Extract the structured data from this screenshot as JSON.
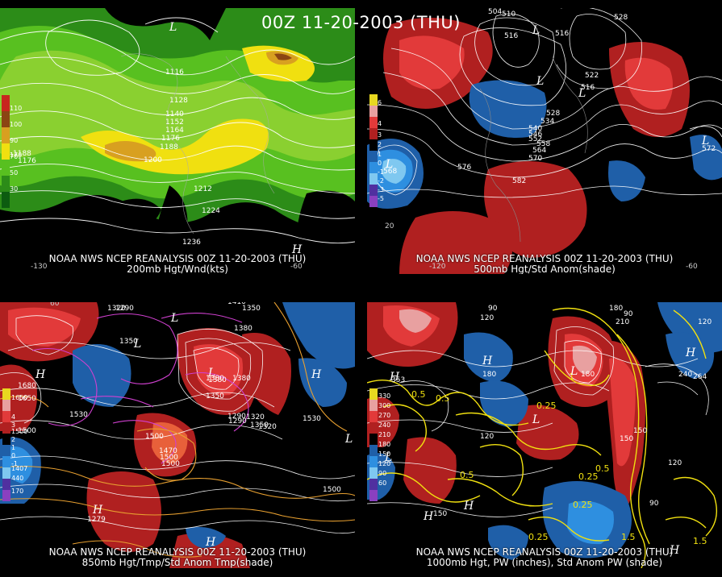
{
  "title": "00Z 11-20-2003 (THU)",
  "panels": [
    {
      "id": "p1",
      "caption_line1": "NOAA NWS NCEP REANALYSIS 00Z 11-20-2003 (THU)",
      "caption_line2": "200mb Hgt/Wnd(kts)",
      "legend_values": [
        "110",
        "100",
        "90",
        "70",
        "50",
        "30",
        "170"
      ],
      "legend_colors": [
        "#c8261e",
        "#8b4513",
        "#d8a020",
        "#f0e010",
        "#58c020",
        "#2c8c18",
        "#0c5c10"
      ],
      "contour_labels": [
        "1116",
        "1128",
        "1140",
        "1152",
        "1164",
        "1176",
        "1188",
        "1200",
        "1212",
        "1224",
        "1236",
        "1188",
        "1176"
      ],
      "highs_lows": [
        "L",
        "H"
      ],
      "lon_labels": [
        "-130",
        "-60"
      ]
    },
    {
      "id": "p2",
      "caption_line1": "NOAA NWS NCEP REANALYSIS 00Z 11-20-2003 (THU)",
      "caption_line2": "500mb Hgt/Std Anom(shade)",
      "legend_values": [
        "6",
        "4",
        "3",
        "2",
        "1",
        "0",
        "-1",
        "-2",
        "-3",
        "-5"
      ],
      "contour_labels": [
        "504",
        "510",
        "516",
        "516",
        "528",
        "522",
        "516",
        "528",
        "534",
        "540",
        "546",
        "552",
        "558",
        "564",
        "570",
        "576",
        "582",
        "572",
        "568"
      ],
      "highs_lows": [
        "L",
        "L",
        "L",
        "L",
        "L"
      ],
      "lon_labels": [
        "-120",
        "20",
        "-60"
      ]
    },
    {
      "id": "p3",
      "caption_line1": "NOAA NWS NCEP REANALYSIS 00Z 11-20-2003 (THU)",
      "caption_line2": "850mb Hgt/Tmp/Std Anom Tmp(shade)",
      "legend_values": [
        "1650",
        "1500",
        "4",
        "3",
        "2",
        "1",
        "0",
        "-1",
        "1407",
        "440",
        "170"
      ],
      "contour_labels": [
        "1290",
        "1320",
        "1410",
        "1350",
        "1380",
        "1380",
        "1350",
        "1290",
        "1320",
        "1350",
        "1530",
        "1680",
        "1650",
        "1500",
        "1530",
        "1500",
        "1470",
        "1500",
        "1500",
        "1290",
        "1380",
        "1380",
        "1350",
        "1500",
        "1320",
        "1279"
      ],
      "highs_lows": [
        "H",
        "H",
        "L",
        "L",
        "L",
        "H",
        "H",
        "L"
      ],
      "lon_labels": [
        "60"
      ]
    },
    {
      "id": "p4",
      "caption_line1": "NOAA NWS NCEP REANALYSIS 00Z 11-20-2003 (THU)",
      "caption_line2": "1000mb Hgt, PW (inches), Std Anom PW (shade)",
      "legend_values": [
        "330",
        "300",
        "270",
        "240",
        "210",
        "180",
        "150",
        "120",
        "90",
        "60"
      ],
      "contour_labels": [
        "90",
        "180",
        "90",
        "120",
        "180",
        "180",
        "0.5",
        "0.5",
        "0.25",
        "150",
        "150",
        "120",
        "0.5",
        "0.25",
        "1",
        "1.5",
        "120",
        "90",
        "150",
        "0.25",
        "0.5",
        "0.25",
        "210",
        "240",
        "264",
        "353",
        "1.5",
        "120"
      ],
      "highs_lows": [
        "H",
        "H",
        "H",
        "L",
        "L",
        "H",
        "H",
        "L",
        "H"
      ],
      "lon_labels": []
    }
  ]
}
